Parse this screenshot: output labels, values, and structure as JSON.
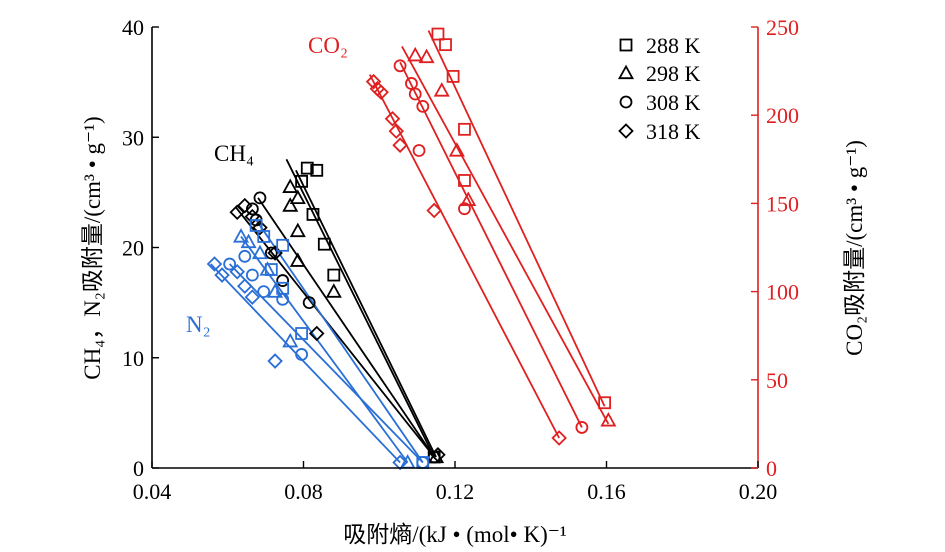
{
  "chart_data": {
    "type": "scatter",
    "xlabel": "吸附熵/(kJ • (mol• K)⁻¹",
    "ylabel_left": "CH₄，N₂吸附量/(cm³ • g⁻¹)",
    "ylabel_right": "CO₂吸附量/(cm³ • g⁻¹)",
    "xlim": [
      0.04,
      0.2
    ],
    "ylim_left": [
      0,
      40
    ],
    "ylim_right": [
      0,
      250
    ],
    "x_ticks": [
      "0.04",
      "0.08",
      "0.12",
      "0.16",
      "0.20"
    ],
    "y_left_ticks": [
      "0",
      "10",
      "20",
      "30",
      "40"
    ],
    "y_right_ticks": [
      "0",
      "50",
      "100",
      "150",
      "200",
      "250"
    ],
    "legend_position": "top-right",
    "legend": [
      {
        "label": "288 K",
        "marker": "square"
      },
      {
        "label": "298 K",
        "marker": "triangle"
      },
      {
        "label": "308 K",
        "marker": "circle"
      },
      {
        "label": "318 K",
        "marker": "diamond"
      }
    ],
    "colors": {
      "CH4": "#000000",
      "N2": "#2a6fd6",
      "CO2": "#e02020",
      "axis": "#000000",
      "right_axis": "#e02020"
    },
    "groups": [
      {
        "name": "CH₄",
        "axis": "left",
        "color": "#000000",
        "series": [
          {
            "temp": "288 K",
            "marker": "square",
            "points": [
              [
                0.081,
                27.2
              ],
              [
                0.0835,
                27.0
              ],
              [
                0.0795,
                26.0
              ],
              [
                0.0825,
                23.0
              ],
              [
                0.0855,
                20.3
              ],
              [
                0.088,
                17.5
              ],
              [
                0.1145,
                1.0
              ]
            ],
            "fit": [
              [
                0.078,
                27.0
              ],
              [
                0.115,
                1.0
              ]
            ]
          },
          {
            "temp": "298 K",
            "marker": "triangle",
            "points": [
              [
                0.0765,
                25.5
              ],
              [
                0.0785,
                24.5
              ],
              [
                0.0765,
                23.8
              ],
              [
                0.0785,
                21.5
              ],
              [
                0.0785,
                18.8
              ],
              [
                0.088,
                16.0
              ],
              [
                0.115,
                1.0
              ]
            ],
            "fit": [
              [
                0.0755,
                28.0
              ],
              [
                0.1145,
                1.0
              ]
            ]
          },
          {
            "temp": "308 K",
            "marker": "circle",
            "points": [
              [
                0.0685,
                24.5
              ],
              [
                0.0665,
                23.5
              ],
              [
                0.0675,
                22.5
              ],
              [
                0.0715,
                19.5
              ],
              [
                0.0745,
                17.0
              ],
              [
                0.0815,
                15.0
              ],
              [
                0.1145,
                1.0
              ]
            ],
            "fit": [
              [
                0.068,
                24.5
              ],
              [
                0.1145,
                1.0
              ]
            ]
          },
          {
            "temp": "318 K",
            "marker": "diamond",
            "points": [
              [
                0.0625,
                23.2
              ],
              [
                0.0645,
                23.8
              ],
              [
                0.0665,
                22.8
              ],
              [
                0.0685,
                21.8
              ],
              [
                0.0725,
                19.5
              ],
              [
                0.0835,
                12.2
              ],
              [
                0.1155,
                1.2
              ]
            ],
            "fit": [
              [
                0.062,
                23.7
              ],
              [
                0.1145,
                1.0
              ]
            ]
          }
        ]
      },
      {
        "name": "N₂",
        "axis": "left",
        "color": "#2a6fd6",
        "series": [
          {
            "temp": "288 K",
            "marker": "square",
            "points": [
              [
                0.0675,
                22.0
              ],
              [
                0.0695,
                21.0
              ],
              [
                0.0745,
                20.2
              ],
              [
                0.0715,
                18.0
              ],
              [
                0.0745,
                16.3
              ],
              [
                0.0795,
                12.2
              ],
              [
                0.1115,
                0.5
              ]
            ],
            "fit": [
              [
                0.0675,
                22.5
              ],
              [
                0.1115,
                0.5
              ]
            ]
          },
          {
            "temp": "298 K",
            "marker": "triangle",
            "points": [
              [
                0.0635,
                21.0
              ],
              [
                0.0655,
                20.5
              ],
              [
                0.0685,
                19.5
              ],
              [
                0.0705,
                18.0
              ],
              [
                0.0725,
                16.0
              ],
              [
                0.0765,
                11.5
              ],
              [
                0.1075,
                0.5
              ]
            ],
            "fit": [
              [
                0.0635,
                21.0
              ],
              [
                0.1075,
                0.5
              ]
            ]
          },
          {
            "temp": "308 K",
            "marker": "circle",
            "points": [
              [
                0.0605,
                18.5
              ],
              [
                0.0645,
                19.2
              ],
              [
                0.0665,
                17.5
              ],
              [
                0.0695,
                16.0
              ],
              [
                0.0745,
                15.3
              ],
              [
                0.0795,
                10.3
              ],
              [
                0.1115,
                0.5
              ]
            ],
            "fit": [
              [
                0.0605,
                18.5
              ],
              [
                0.1115,
                0.5
              ]
            ]
          },
          {
            "temp": "318 K",
            "marker": "diamond",
            "points": [
              [
                0.0565,
                18.5
              ],
              [
                0.0585,
                17.5
              ],
              [
                0.0625,
                17.8
              ],
              [
                0.0645,
                16.5
              ],
              [
                0.0665,
                15.5
              ],
              [
                0.0725,
                9.7
              ],
              [
                0.1055,
                0.5
              ]
            ],
            "fit": [
              [
                0.0555,
                18.5
              ],
              [
                0.1055,
                0.5
              ]
            ]
          }
        ]
      },
      {
        "name": "CO₂",
        "axis": "right",
        "color": "#e02020",
        "series": [
          {
            "temp": "288 K",
            "marker": "square",
            "points": [
              [
                0.1155,
                246.0
              ],
              [
                0.1175,
                240.0
              ],
              [
                0.1195,
                222.0
              ],
              [
                0.1225,
                192.0
              ],
              [
                0.1225,
                163.0
              ],
              [
                0.1595,
                37.0
              ]
            ],
            "fit": [
              [
                0.113,
                248.0
              ],
              [
                0.1595,
                35.0
              ]
            ]
          },
          {
            "temp": "298 K",
            "marker": "triangle",
            "points": [
              [
                0.1095,
                234.0
              ],
              [
                0.1125,
                233.0
              ],
              [
                0.1165,
                214.0
              ],
              [
                0.1205,
                180.0
              ],
              [
                0.1235,
                152.0
              ],
              [
                0.1605,
                27.0
              ]
            ],
            "fit": [
              [
                0.106,
                239.0
              ],
              [
                0.1605,
                25.0
              ]
            ]
          },
          {
            "temp": "308 K",
            "marker": "circle",
            "points": [
              [
                0.1055,
                228.0
              ],
              [
                0.1085,
                218.0
              ],
              [
                0.1095,
                212.0
              ],
              [
                0.1115,
                205.0
              ],
              [
                0.1105,
                180.0
              ],
              [
                0.1225,
                147.0
              ],
              [
                0.1535,
                23.0
              ]
            ],
            "fit": [
              [
                0.1055,
                230.0
              ],
              [
                0.1535,
                23.0
              ]
            ]
          },
          {
            "temp": "318 K",
            "marker": "diamond",
            "points": [
              [
                0.0985,
                219.0
              ],
              [
                0.0995,
                215.0
              ],
              [
                0.1005,
                213.0
              ],
              [
                0.1035,
                198.0
              ],
              [
                0.1045,
                191.0
              ],
              [
                0.1055,
                183.0
              ],
              [
                0.1145,
                146.0
              ],
              [
                0.1475,
                17.0
              ]
            ],
            "fit": [
              [
                0.0975,
                223.0
              ],
              [
                0.1475,
                17.0
              ]
            ]
          }
        ]
      }
    ],
    "annotations": [
      {
        "text": "CH₄",
        "color": "#000000"
      },
      {
        "text": "N₂",
        "color": "#2a6fd6"
      },
      {
        "text": "CO₂",
        "color": "#e02020"
      }
    ]
  }
}
